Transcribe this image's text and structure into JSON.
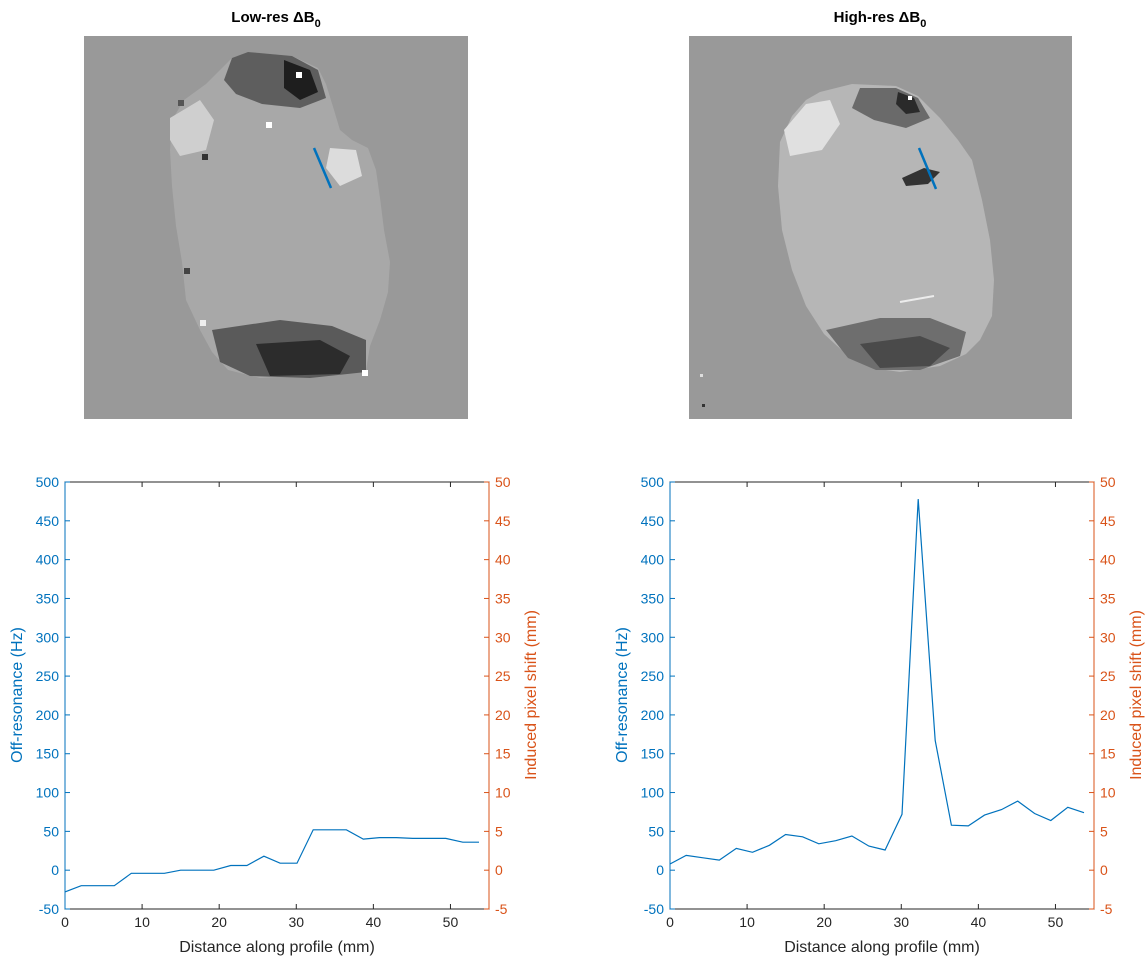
{
  "panels": {
    "low_title": "Low-res ΔB",
    "high_title": "High-res ΔB",
    "subscript": "0"
  },
  "colors": {
    "left_axis": "#0072BD",
    "right_axis": "#D95319",
    "line": "#0072BD",
    "map_background": "#999999",
    "profile_line": "#0072BD"
  },
  "chart_data": [
    {
      "type": "line",
      "title": "",
      "xlabel": "Distance along profile (mm)",
      "ylabel": "Off-resonance (Hz)",
      "ylabel_right": "Induced pixel shift (mm)",
      "xlim": [
        0,
        55
      ],
      "ylim": [
        -50,
        500
      ],
      "ylim_right": [
        -5,
        50
      ],
      "xticks": [
        "0",
        "10",
        "20",
        "30",
        "40",
        "50"
      ],
      "yticks": [
        "-50",
        "0",
        "50",
        "100",
        "150",
        "200",
        "250",
        "300",
        "350",
        "400",
        "450",
        "500"
      ],
      "yticks_right": [
        "-5",
        "0",
        "5",
        "10",
        "15",
        "20",
        "25",
        "30",
        "35",
        "40",
        "45",
        "50"
      ],
      "grid": false,
      "series": [
        {
          "x": [
            0,
            2.1,
            4.3,
            6.4,
            8.6,
            10.7,
            12.9,
            15,
            17.2,
            19.3,
            21.5,
            23.6,
            25.8,
            27.9,
            30.1,
            32.2,
            34.4,
            36.5,
            38.7,
            40.8,
            43,
            45.1,
            47.3,
            49.4,
            51.6,
            53.7
          ],
          "y": [
            -28,
            -20,
            -20,
            -20,
            -4,
            -4,
            -4,
            0,
            0,
            0,
            6,
            6,
            18,
            9,
            9,
            52,
            52,
            52,
            40,
            42,
            42,
            41,
            41,
            41,
            36,
            36
          ]
        }
      ]
    },
    {
      "type": "line",
      "title": "",
      "xlabel": "Distance along profile (mm)",
      "ylabel": "Off-resonance (Hz)",
      "ylabel_right": "Induced pixel shift (mm)",
      "xlim": [
        0,
        55
      ],
      "ylim": [
        -50,
        500
      ],
      "ylim_right": [
        -5,
        50
      ],
      "xticks": [
        "0",
        "10",
        "20",
        "30",
        "40",
        "50"
      ],
      "yticks": [
        "-50",
        "0",
        "50",
        "100",
        "150",
        "200",
        "250",
        "300",
        "350",
        "400",
        "450",
        "500"
      ],
      "yticks_right": [
        "-5",
        "0",
        "5",
        "10",
        "15",
        "20",
        "25",
        "30",
        "35",
        "40",
        "45",
        "50"
      ],
      "grid": false,
      "series": [
        {
          "x": [
            0,
            2.1,
            4.3,
            6.4,
            8.6,
            10.7,
            12.9,
            15,
            17.2,
            19.3,
            21.5,
            23.6,
            25.8,
            27.9,
            30.1,
            32.2,
            34.4,
            36.5,
            38.7,
            40.8,
            43,
            45.1,
            47.3,
            49.4,
            51.6,
            53.7
          ],
          "y": [
            8,
            19,
            16,
            13,
            28,
            23,
            32,
            46,
            43,
            34,
            38,
            44,
            31,
            26,
            72,
            478,
            167,
            58,
            57,
            71,
            78,
            89,
            73,
            64,
            81,
            74
          ]
        }
      ]
    }
  ]
}
